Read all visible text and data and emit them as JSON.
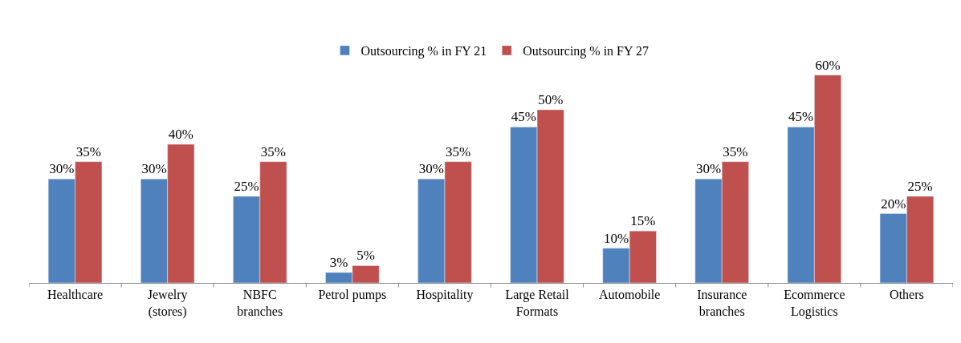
{
  "chart_data": {
    "type": "bar",
    "categories": [
      "Healthcare",
      "Jewelry (stores)",
      "NBFC branches",
      "Petrol pumps",
      "Hospitality",
      "Large Retail Formats",
      "Automobile",
      "Insurance branches",
      "Ecommerce Logistics",
      "Others"
    ],
    "series": [
      {
        "name": "Outsourcing % in FY 21",
        "color": "#4f81bd",
        "values": [
          30,
          30,
          25,
          3,
          30,
          45,
          10,
          30,
          45,
          20
        ],
        "value_labels": [
          "30%",
          "30%",
          "25%",
          "3%",
          "30%",
          "45%",
          "10%",
          "30%",
          "45%",
          "20%"
        ]
      },
      {
        "name": "Outsourcing % in FY 27",
        "color": "#c0504d",
        "values": [
          35,
          40,
          35,
          5,
          35,
          50,
          15,
          35,
          60,
          25
        ],
        "value_labels": [
          "35%",
          "40%",
          "35%",
          "5%",
          "35%",
          "50%",
          "15%",
          "35%",
          "60%",
          "25%"
        ]
      }
    ],
    "legend": "top"
  }
}
